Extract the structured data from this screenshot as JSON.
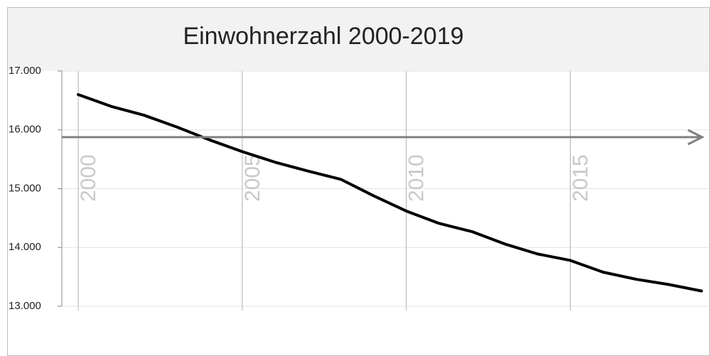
{
  "chart_data": {
    "type": "line",
    "title": "Einwohnerzahl 2000-2019",
    "x": [
      2000,
      2001,
      2002,
      2003,
      2004,
      2005,
      2006,
      2007,
      2008,
      2009,
      2010,
      2011,
      2012,
      2013,
      2014,
      2015,
      2016,
      2017,
      2018,
      2019
    ],
    "series": [
      {
        "name": "Einwohnerzahl",
        "color": "#000000",
        "values": [
          16600,
          16400,
          16250,
          16050,
          15830,
          15630,
          15450,
          15300,
          15160,
          14880,
          14620,
          14410,
          14270,
          14060,
          13890,
          13780,
          13580,
          13460,
          13370,
          13260
        ]
      }
    ],
    "xlim": [
      1999.5,
      2019
    ],
    "xticks": [
      2000,
      2005,
      2010,
      2015
    ],
    "ylim": [
      13000,
      17000
    ],
    "yticks": [
      {
        "value": 13000,
        "label": "13.000"
      },
      {
        "value": 14000,
        "label": "14.000"
      },
      {
        "value": 15000,
        "label": "15.000"
      },
      {
        "value": 16000,
        "label": "16.000"
      },
      {
        "value": 17000,
        "label": "17.000"
      }
    ],
    "grid": true
  }
}
